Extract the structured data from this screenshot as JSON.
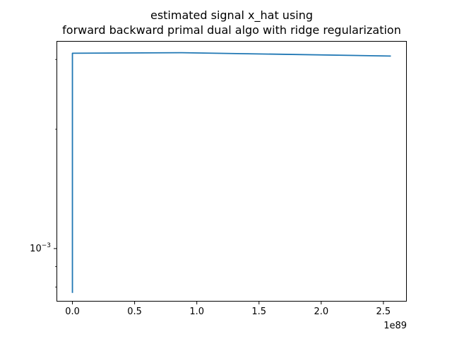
{
  "chart_data": {
    "type": "line",
    "title_lines": [
      "estimated signal x_hat using",
      "forward backward primal dual algo with ridge regularization"
    ],
    "title": "estimated signal x_hat using forward backward primal dual algo with ridge regularization",
    "xlabel": "",
    "ylabel": "",
    "x_scale": "linear",
    "y_scale": "log",
    "x_offset_label": "1e89",
    "xlim": [
      -1.28e+88,
      2.688e+89
    ],
    "ylim": [
      0.000735,
      0.00334
    ],
    "x_ticks": [
      {
        "value": 0.0,
        "label": "0.0"
      },
      {
        "value": 5e+88,
        "label": "0.5"
      },
      {
        "value": 1e+89,
        "label": "1.0"
      },
      {
        "value": 1.5e+89,
        "label": "1.5"
      },
      {
        "value": 2e+89,
        "label": "2.0"
      },
      {
        "value": 2.5e+89,
        "label": "2.5"
      }
    ],
    "y_major_ticks": [
      {
        "value": 0.001,
        "base": "10",
        "exponent": "−3"
      }
    ],
    "y_minor_ticks": [
      0.0008,
      0.0009,
      0.002,
      0.003
    ],
    "grid": false,
    "legend": "none",
    "series": [
      {
        "color": "#1f77b4",
        "x": [
          0,
          0,
          8.8e+88,
          2.56e+89
        ],
        "y": [
          0.000773,
          0.00311,
          0.00312,
          0.00306
        ]
      }
    ]
  }
}
